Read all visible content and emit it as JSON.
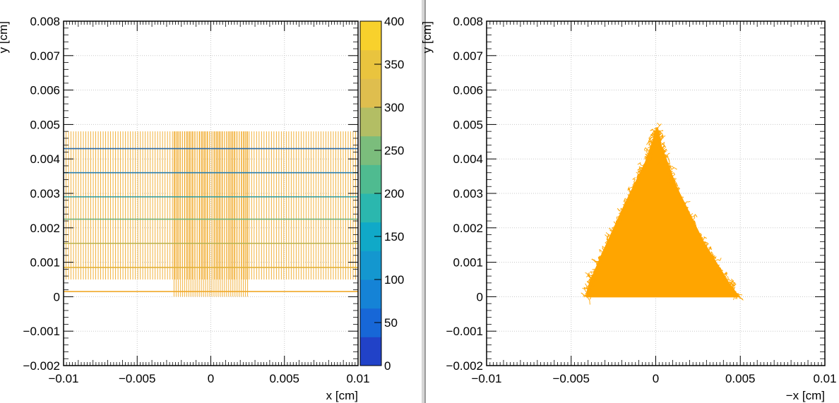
{
  "chart_data": [
    {
      "type": "heatmap",
      "panel": "left",
      "xlabel": "x [cm]",
      "ylabel": "y [cm]",
      "xlim": [
        -0.01,
        0.01
      ],
      "ylim": [
        -0.002,
        0.008
      ],
      "x_ticks": [
        -0.01,
        -0.005,
        0,
        0.005,
        0.01
      ],
      "x_tick_labels": [
        "−0.01",
        "−0.005",
        "0",
        "0.005",
        "0.01"
      ],
      "y_ticks": [
        -0.002,
        -0.001,
        0,
        0.001,
        0.002,
        0.003,
        0.004,
        0.005,
        0.006,
        0.007,
        0.008
      ],
      "y_tick_labels": [
        "−0.002",
        "−0.001",
        "0",
        "0.001",
        "0.002",
        "0.003",
        "0.004",
        "0.005",
        "0.006",
        "0.007",
        "0.008"
      ],
      "grid": true,
      "colorbar": {
        "range": [
          0,
          400
        ],
        "ticks": [
          0,
          50,
          100,
          150,
          200,
          250,
          300,
          350,
          400
        ],
        "tick_labels": [
          "0",
          "50",
          "100",
          "150",
          "200",
          "250",
          "300",
          "350",
          "400"
        ],
        "colors": [
          "#2142c8",
          "#1767d7",
          "#1583d6",
          "#1497cf",
          "#10a9c8",
          "#2bb7ae",
          "#4fbb90",
          "#7bbd7c",
          "#b3be64",
          "#dfbe4e",
          "#e9c43e",
          "#f8d12c"
        ]
      },
      "vertical_lines": {
        "x_min": -0.01,
        "x_max": 0.01,
        "count": 120,
        "y_bottom": 0.0005,
        "y_top": 0.0048,
        "color": "#f0a928"
      },
      "vertical_lines_center": {
        "x_min": -0.0025,
        "x_max": 0.0025,
        "count": 36,
        "y_bottom": 0.0,
        "y_top": 0.0048,
        "color": "#f0a928"
      },
      "horizontal_lines": [
        {
          "y": 0.00015,
          "color": "#f0a928"
        },
        {
          "y": 0.00085,
          "color": "#e2b23a"
        },
        {
          "y": 0.00155,
          "color": "#b8b250"
        },
        {
          "y": 0.00225,
          "color": "#6fb27c"
        },
        {
          "y": 0.0029,
          "color": "#2a9aa0"
        },
        {
          "y": 0.0036,
          "color": "#2a7fb0"
        },
        {
          "y": 0.0043,
          "color": "#2a6aa8"
        }
      ]
    },
    {
      "type": "scatter",
      "panel": "right",
      "xlabel": "−x [cm]",
      "ylabel": "y [cm]",
      "xlim": [
        -0.01,
        0.01
      ],
      "ylim": [
        -0.002,
        0.008
      ],
      "x_ticks": [
        -0.01,
        -0.005,
        0,
        0.005,
        0.01
      ],
      "x_tick_labels": [
        "−0.01",
        "−0.005",
        "0",
        "0.005",
        "0.01"
      ],
      "y_ticks": [
        -0.002,
        -0.001,
        0,
        0.001,
        0.002,
        0.003,
        0.004,
        0.005,
        0.006,
        0.007,
        0.008
      ],
      "y_tick_labels": [
        "−0.002",
        "−0.001",
        "0",
        "0.001",
        "0.002",
        "0.003",
        "0.004",
        "0.005",
        "0.006",
        "0.007",
        "0.008"
      ],
      "grid": true,
      "shape": {
        "color": "#ffa500",
        "outline": [
          [
            -0.0041,
            0.0
          ],
          [
            0.0049,
            0.0
          ],
          [
            0.0043,
            0.0004
          ],
          [
            0.0028,
            0.0016
          ],
          [
            0.0012,
            0.0032
          ],
          [
            0.0003,
            0.0044
          ],
          [
            0.0001,
            0.0049
          ],
          [
            -0.0006,
            0.0039
          ],
          [
            -0.0018,
            0.0027
          ],
          [
            -0.0032,
            0.0012
          ],
          [
            -0.0039,
            0.0004
          ]
        ]
      }
    }
  ]
}
